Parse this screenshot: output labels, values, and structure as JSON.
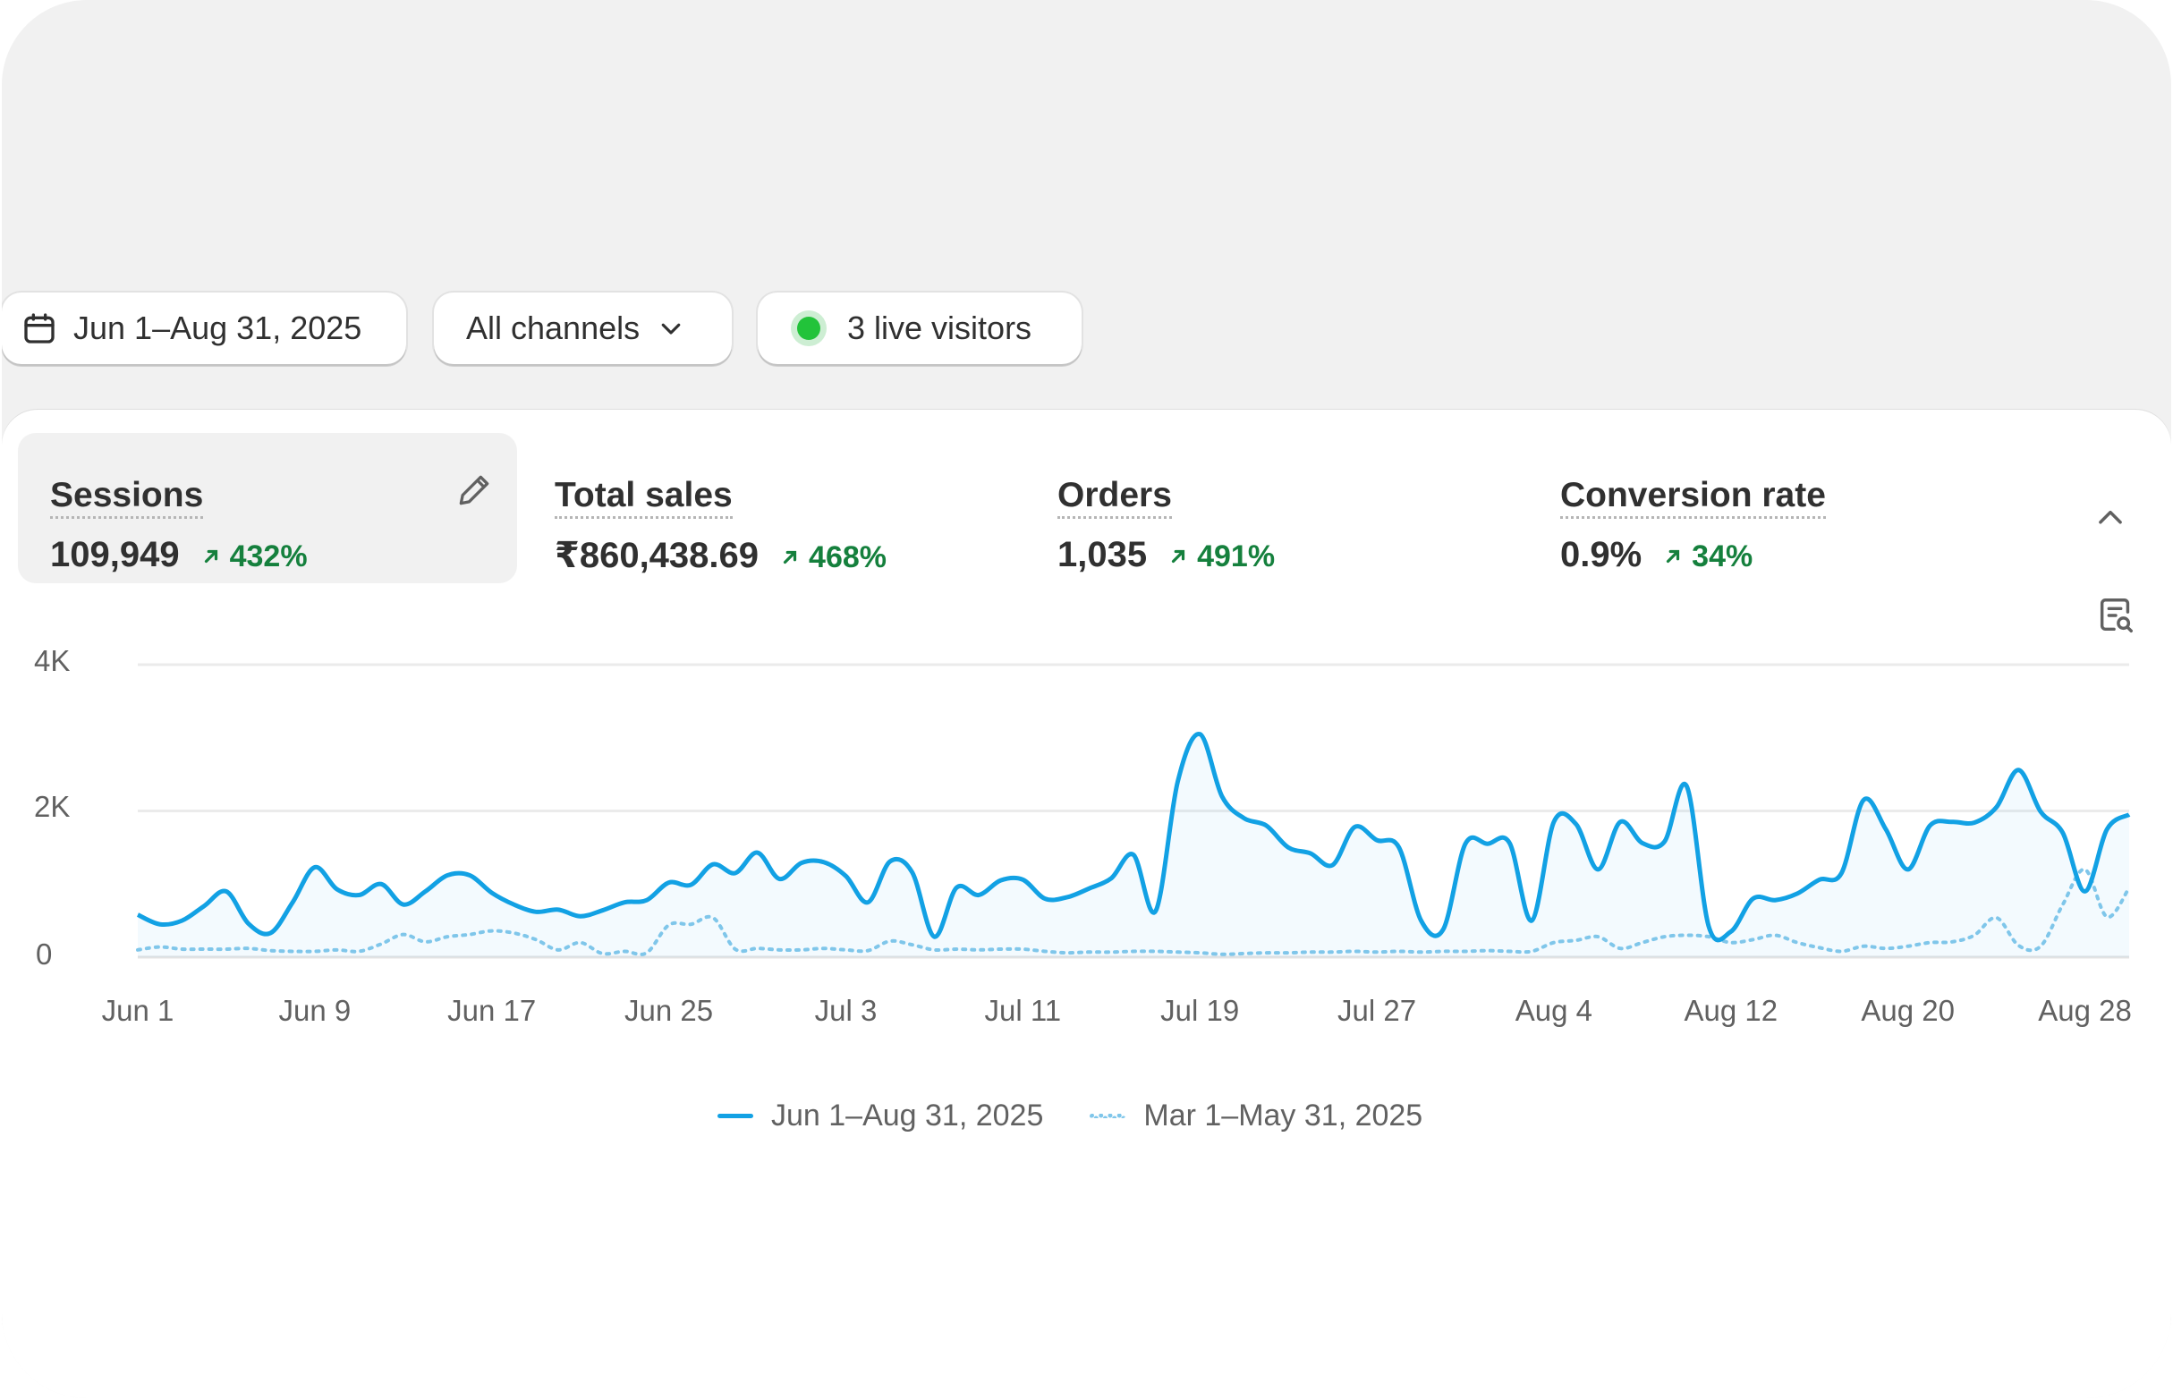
{
  "toolbar": {
    "date_range": "Jun 1–Aug 31, 2025",
    "channel": "All channels",
    "live_visitors": "3 live visitors"
  },
  "metrics": [
    {
      "label": "Sessions",
      "value": "109,949",
      "delta": "432%",
      "active": true
    },
    {
      "label": "Total sales",
      "value": "₹860,438.69",
      "delta": "468%"
    },
    {
      "label": "Orders",
      "value": "1,035",
      "delta": "491%"
    },
    {
      "label": "Conversion rate",
      "value": "0.9%",
      "delta": "34%"
    }
  ],
  "colors": {
    "primary_series": "#12a1e4",
    "comparison_series": "#7fc6ea",
    "positive": "#15803d",
    "live": "#22c33a"
  },
  "icons": [
    "calendar-icon",
    "chevron-down-icon",
    "live-dot-icon",
    "pencil-icon",
    "chevron-up-icon",
    "report-search-icon",
    "arrow-up-right-icon"
  ],
  "chart_data": {
    "type": "line",
    "title": "",
    "xlabel": "",
    "ylabel": "",
    "y_ticks": [
      "0",
      "2K",
      "4K"
    ],
    "ylim": [
      0,
      4000
    ],
    "grid": true,
    "x_ticks": [
      "Jun 1",
      "Jun 9",
      "Jun 17",
      "Jun 25",
      "Jul 3",
      "Jul 11",
      "Jul 19",
      "Jul 27",
      "Aug 4",
      "Aug 12",
      "Aug 20",
      "Aug 28"
    ],
    "legend_position": "bottom-center",
    "series": [
      {
        "name": "Jun 1–Aug 31, 2025",
        "style": "solid",
        "values": [
          580,
          450,
          500,
          700,
          900,
          460,
          330,
          750,
          1230,
          930,
          850,
          1000,
          720,
          900,
          1120,
          1120,
          880,
          720,
          620,
          650,
          560,
          640,
          750,
          780,
          1020,
          990,
          1270,
          1150,
          1430,
          1070,
          1290,
          1300,
          1110,
          750,
          1310,
          1160,
          280,
          950,
          850,
          1050,
          1060,
          800,
          820,
          940,
          1080,
          1400,
          630,
          2400,
          3050,
          2200,
          1900,
          1800,
          1500,
          1420,
          1260,
          1780,
          1600,
          1500,
          500,
          380,
          1550,
          1550,
          1560,
          500,
          1850,
          1820,
          1200,
          1850,
          1560,
          1580,
          2340,
          420,
          350,
          800,
          780,
          870,
          1060,
          1150,
          2150,
          1750,
          1200,
          1800,
          1850,
          1840,
          2050,
          2560,
          1990,
          1700,
          900,
          1750,
          1950
        ]
      },
      {
        "name": "Mar 1–May 31, 2025",
        "style": "dotted",
        "values": [
          100,
          140,
          110,
          110,
          110,
          120,
          90,
          80,
          80,
          100,
          80,
          180,
          310,
          210,
          280,
          310,
          360,
          330,
          240,
          100,
          200,
          50,
          80,
          60,
          440,
          450,
          540,
          110,
          120,
          100,
          100,
          120,
          100,
          90,
          220,
          170,
          100,
          110,
          100,
          110,
          110,
          80,
          60,
          70,
          70,
          80,
          80,
          70,
          60,
          40,
          50,
          60,
          60,
          70,
          70,
          80,
          70,
          80,
          70,
          80,
          80,
          90,
          80,
          80,
          200,
          230,
          280,
          120,
          200,
          280,
          300,
          280,
          200,
          240,
          300,
          200,
          130,
          80,
          150,
          120,
          150,
          200,
          210,
          300,
          540,
          160,
          150,
          720,
          1200,
          550,
          950
        ]
      }
    ]
  }
}
